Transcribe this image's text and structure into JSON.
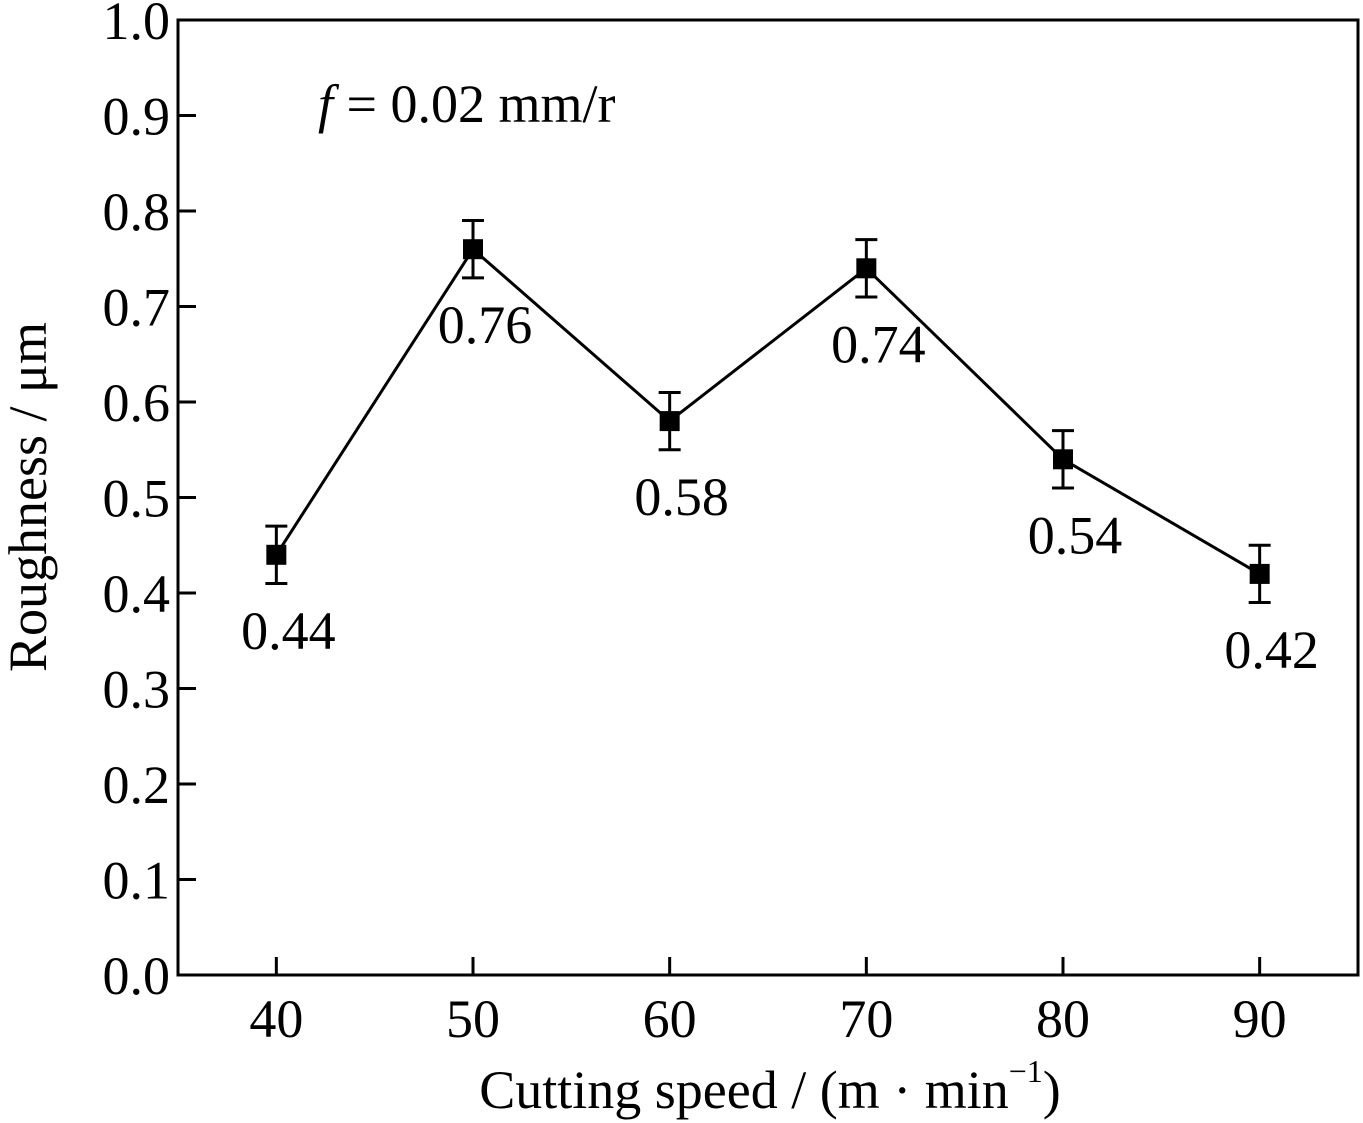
{
  "chart_data": {
    "type": "line",
    "title": "",
    "xlabel": "Cutting speed / (m · min",
    "xlabel_sup": "−1",
    "xlabel_close": ")",
    "ylabel": "Roughness / μm",
    "annotation": {
      "var": "f",
      "text": " = 0.02 mm/r"
    },
    "x": [
      40,
      50,
      60,
      70,
      80,
      90
    ],
    "xtick_labels": [
      "40",
      "50",
      "60",
      "70",
      "80",
      "90"
    ],
    "xlim": [
      35,
      95
    ],
    "ylim": [
      0.0,
      1.0
    ],
    "yticks": [
      0.0,
      0.1,
      0.2,
      0.3,
      0.4,
      0.5,
      0.6,
      0.7,
      0.8,
      0.9,
      1.0
    ],
    "ytick_labels": [
      "0.0",
      "0.1",
      "0.2",
      "0.3",
      "0.4",
      "0.5",
      "0.6",
      "0.7",
      "0.8",
      "0.9",
      "1.0"
    ],
    "series": [
      {
        "values": [
          0.44,
          0.76,
          0.58,
          0.74,
          0.54,
          0.42
        ],
        "errors": [
          0.03,
          0.03,
          0.03,
          0.03,
          0.03,
          0.03
        ],
        "data_labels": [
          "0.44",
          "0.76",
          "0.58",
          "0.74",
          "0.54",
          "0.42"
        ],
        "label_pos": [
          "below",
          "below",
          "below",
          "below",
          "below",
          "below"
        ],
        "marker": "square",
        "color": "#000000"
      }
    ],
    "grid": false,
    "legend": "none"
  }
}
